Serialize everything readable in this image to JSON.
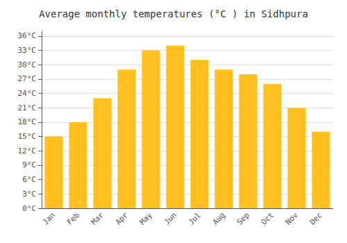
{
  "chart_data": {
    "type": "bar",
    "title": "Average monthly temperatures (°C ) in Sidhpura",
    "categories": [
      "Jan",
      "Feb",
      "Mar",
      "Apr",
      "May",
      "Jun",
      "Jul",
      "Aug",
      "Sep",
      "Oct",
      "Nov",
      "Dec"
    ],
    "values": [
      15,
      18,
      23,
      29,
      33,
      34,
      31,
      29,
      28,
      26,
      21,
      16
    ],
    "color": "#FFC020",
    "ylim": [
      0,
      37
    ],
    "yticks": [
      {
        "value": 0,
        "label": "0°C"
      },
      {
        "value": 3,
        "label": "3°C"
      },
      {
        "value": 6,
        "label": "6°C"
      },
      {
        "value": 9,
        "label": "9°C"
      },
      {
        "value": 12,
        "label": "12°C"
      },
      {
        "value": 15,
        "label": "15°C"
      },
      {
        "value": 18,
        "label": "18°C"
      },
      {
        "value": 21,
        "label": "21°C"
      },
      {
        "value": 24,
        "label": "24°C"
      },
      {
        "value": 27,
        "label": "27°C"
      },
      {
        "value": 30,
        "label": "30°C"
      },
      {
        "value": 33,
        "label": "33°C"
      },
      {
        "value": 36,
        "label": "36°C"
      }
    ],
    "grid": true
  }
}
